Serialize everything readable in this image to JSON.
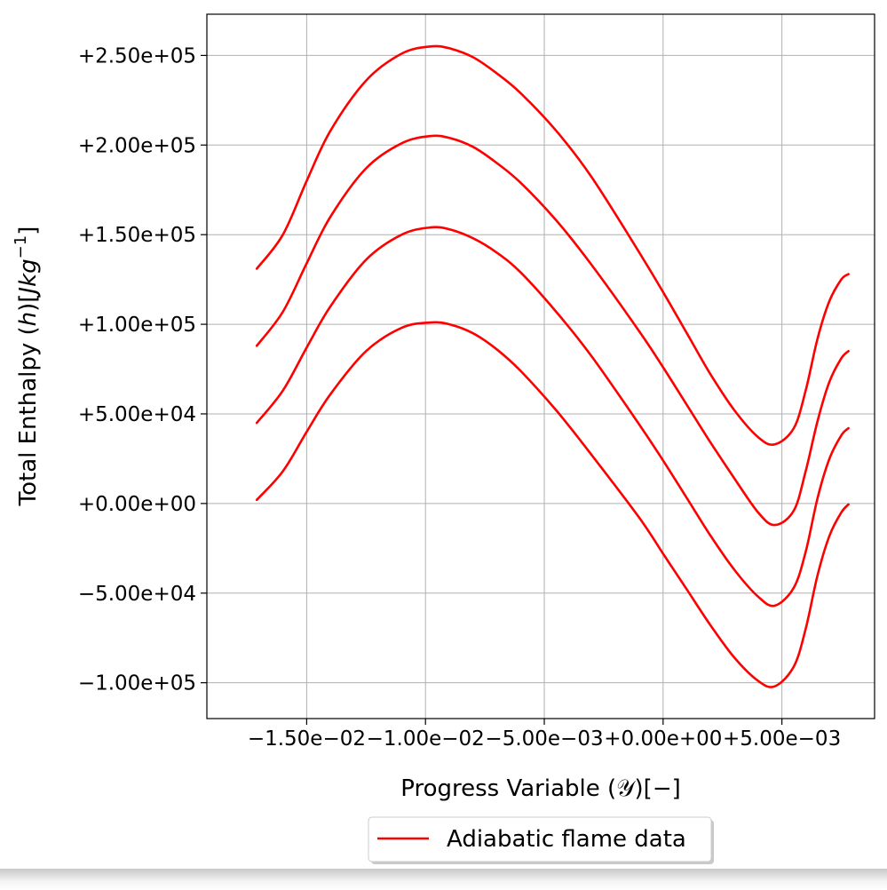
{
  "chart_data": {
    "type": "line",
    "xlabel": "Progress Variable (𝒴)[−]",
    "ylabel": "Total Enthalpy (h)[Jkg⁻¹]",
    "ylabel_parts": {
      "prefix": "Total Enthalpy (",
      "h": "h",
      "mid": ")[",
      "unit": "Jkg",
      "exp": "−1",
      "suffix": "]"
    },
    "xlim": [
      -0.0192,
      0.0089
    ],
    "ylim": [
      -120000,
      273000
    ],
    "grid": true,
    "legend": {
      "placement": "bottom-center-outside",
      "label": "Adiabatic flame data"
    },
    "line_color": "#ff0000",
    "xticks": [
      {
        "value": -0.015,
        "label": "−1.50e−02"
      },
      {
        "value": -0.01,
        "label": "−1.00e−02"
      },
      {
        "value": -0.005,
        "label": "−5.00e−03"
      },
      {
        "value": 0.0,
        "label": "+0.00e+00"
      },
      {
        "value": 0.005,
        "label": "+5.00e−03"
      }
    ],
    "yticks": [
      {
        "value": -100000,
        "label": "−1.00e+05"
      },
      {
        "value": -50000,
        "label": "−5.00e+04"
      },
      {
        "value": 0,
        "label": "+0.00e+00"
      },
      {
        "value": 50000,
        "label": "+5.00e+04"
      },
      {
        "value": 100000,
        "label": "+1.00e+05"
      },
      {
        "value": 150000,
        "label": "+1.50e+05"
      },
      {
        "value": 200000,
        "label": "+2.00e+05"
      },
      {
        "value": 250000,
        "label": "+2.50e+05"
      }
    ],
    "series": [
      {
        "x": [
          -0.0171,
          -0.016,
          -0.015,
          -0.014,
          -0.0125,
          -0.011,
          -0.0098,
          -0.009,
          -0.008,
          -0.007,
          -0.006,
          -0.0045,
          -0.003,
          -0.001,
          0.0,
          0.001,
          0.002,
          0.003,
          0.004,
          0.0047,
          0.0055,
          0.006,
          0.0065,
          0.007,
          0.0075,
          0.0078
        ],
        "y": [
          2000,
          18000,
          40000,
          61000,
          85000,
          98000,
          101000,
          100000,
          95000,
          86000,
          74000,
          52000,
          27000,
          -8000,
          -28000,
          -48000,
          -68000,
          -86000,
          -99000,
          -102000,
          -91000,
          -70000,
          -40000,
          -18000,
          -5000,
          -500
        ]
      },
      {
        "x": [
          -0.0171,
          -0.016,
          -0.015,
          -0.014,
          -0.0125,
          -0.011,
          -0.0098,
          -0.009,
          -0.008,
          -0.007,
          -0.006,
          -0.0045,
          -0.003,
          -0.001,
          0.0,
          0.001,
          0.002,
          0.003,
          0.004,
          0.0047,
          0.0055,
          0.006,
          0.0065,
          0.007,
          0.0075,
          0.0078
        ],
        "y": [
          45000,
          63000,
          87000,
          110000,
          136000,
          150000,
          154000,
          153000,
          148000,
          140000,
          129000,
          107000,
          82000,
          44000,
          24000,
          3000,
          -18000,
          -37000,
          -52000,
          -57000,
          -47000,
          -27000,
          3000,
          25000,
          38000,
          42000
        ]
      },
      {
        "x": [
          -0.0171,
          -0.016,
          -0.015,
          -0.014,
          -0.0125,
          -0.011,
          -0.0098,
          -0.009,
          -0.008,
          -0.007,
          -0.006,
          -0.0045,
          -0.003,
          -0.001,
          0.0,
          0.001,
          0.002,
          0.003,
          0.004,
          0.0047,
          0.0055,
          0.006,
          0.0065,
          0.007,
          0.0075,
          0.0078
        ],
        "y": [
          88000,
          107000,
          134000,
          160000,
          187000,
          201000,
          205000,
          204000,
          199000,
          190000,
          179000,
          158000,
          133000,
          96000,
          76000,
          55000,
          34000,
          14000,
          -5000,
          -12000,
          -4000,
          18000,
          46000,
          68000,
          81000,
          85000
        ]
      },
      {
        "x": [
          -0.0171,
          -0.016,
          -0.015,
          -0.014,
          -0.0125,
          -0.011,
          -0.0098,
          -0.009,
          -0.008,
          -0.007,
          -0.006,
          -0.0045,
          -0.003,
          -0.001,
          0.0,
          0.001,
          0.002,
          0.003,
          0.004,
          0.0047,
          0.0055,
          0.006,
          0.0065,
          0.007,
          0.0075,
          0.0078
        ],
        "y": [
          131000,
          150000,
          180000,
          208000,
          236000,
          251000,
          255000,
          254000,
          249000,
          240000,
          229000,
          208000,
          182000,
          140000,
          118000,
          95000,
          72000,
          52000,
          37000,
          33000,
          42000,
          63000,
          92000,
          113000,
          125000,
          128000
        ]
      }
    ]
  }
}
